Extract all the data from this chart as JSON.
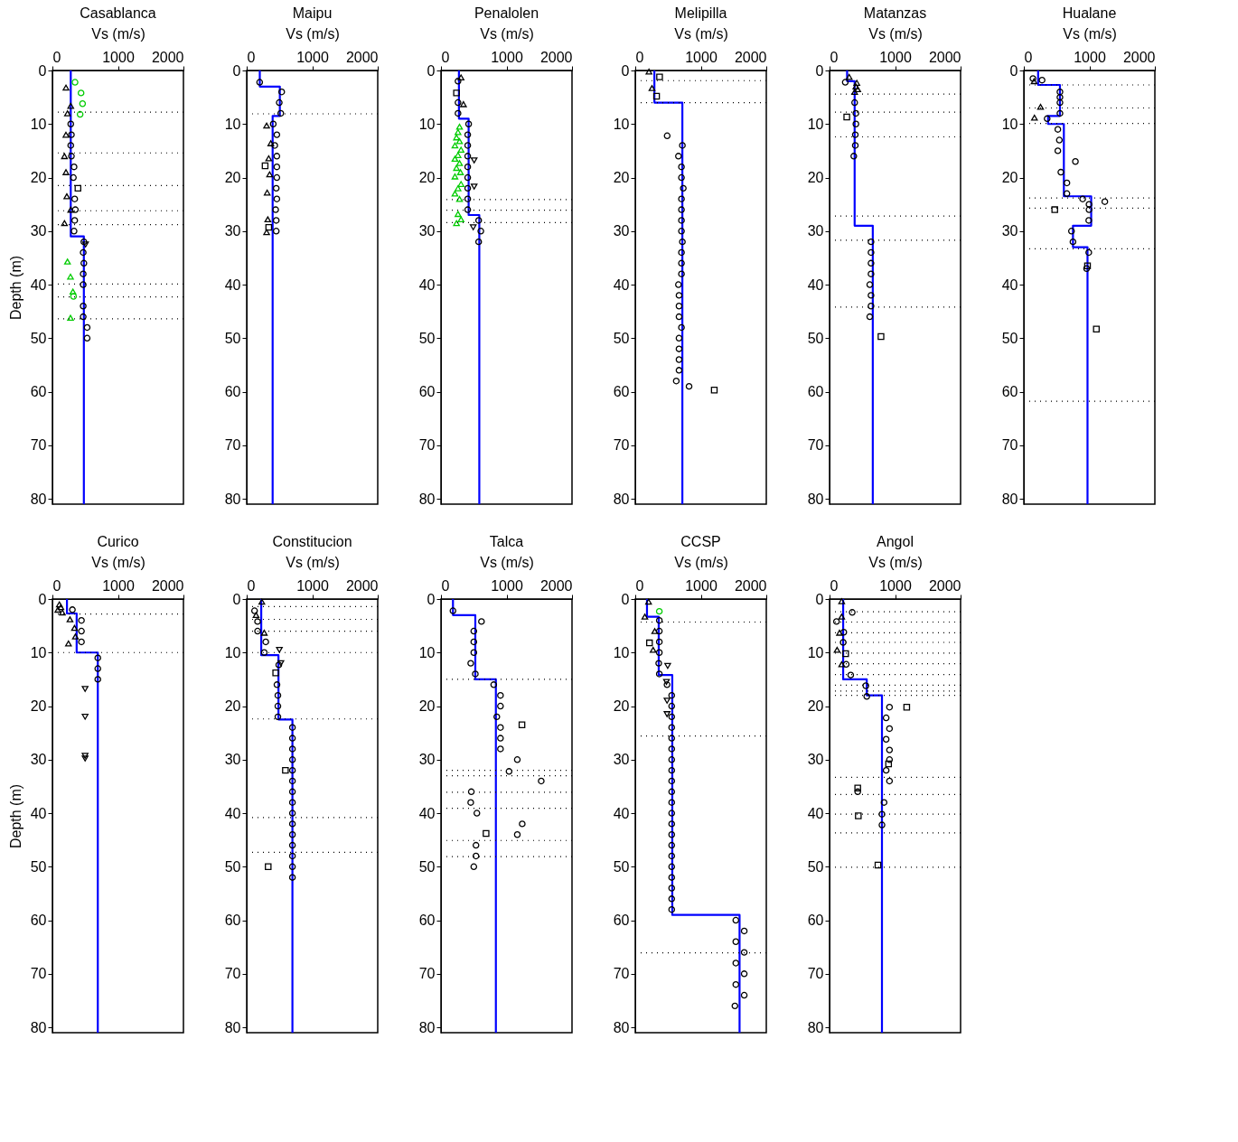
{
  "chart_data": [
    {
      "type": "line",
      "title": "Casablanca",
      "xlabel": "Vs (m/s)",
      "ylabel": "Depth (m)",
      "xlim": [
        0,
        2000
      ],
      "xticks": [
        0,
        1000,
        2000
      ],
      "ylim": [
        81,
        0
      ],
      "yticks": [
        0,
        10,
        20,
        30,
        40,
        50,
        60,
        70,
        80
      ],
      "series": [
        {
          "type": "line",
          "color": "#0000ff",
          "x": [
            280,
            280,
            480,
            480
          ],
          "values": [
            0,
            31,
            31,
            81
          ]
        },
        {
          "type": "scatter",
          "marker": "circle",
          "color": "#000000",
          "x": [
            280,
            290,
            280,
            290,
            330,
            320,
            340,
            350,
            340,
            330,
            480,
            470,
            480,
            470,
            470,
            470,
            470,
            530,
            530
          ],
          "values": [
            10,
            12,
            14,
            16,
            18,
            20,
            24,
            26,
            28,
            30,
            32,
            34,
            36,
            38,
            40,
            44,
            46,
            48,
            50
          ]
        },
        {
          "type": "scatter",
          "marker": "triangle",
          "color": "#000000",
          "x": [
            207,
            280,
            230,
            207,
            184,
            207,
            220,
            280,
            184
          ],
          "values": [
            3.2,
            6.6,
            8,
            12,
            16,
            19,
            23.5,
            26,
            28.5
          ]
        },
        {
          "type": "scatter",
          "marker": "square",
          "color": "#000000",
          "x": [
            390
          ],
          "values": [
            22
          ]
        },
        {
          "type": "scatter",
          "marker": "triangle-down",
          "color": "#000000",
          "x": [
            506
          ],
          "values": [
            32.5
          ]
        },
        {
          "type": "scatter",
          "marker": "circle",
          "color": "#00cc00",
          "x": [
            345,
            437,
            460,
            423,
            322
          ],
          "values": [
            2.2,
            4.2,
            6.2,
            8.2,
            42.2
          ]
        },
        {
          "type": "scatter",
          "marker": "triangle",
          "color": "#00cc00",
          "x": [
            230,
            276,
            313,
            276
          ],
          "values": [
            35.7,
            38.5,
            41.3,
            46.2
          ]
        }
      ],
      "ref_lines": [
        {
          "axis": "y",
          "value": 7.8,
          "line_style": "dotted",
          "color": "#000000"
        },
        {
          "axis": "y",
          "value": 15.4,
          "line_style": "dotted",
          "color": "#000000"
        },
        {
          "axis": "y",
          "value": 21.5,
          "line_style": "dotted",
          "color": "#000000"
        },
        {
          "axis": "y",
          "value": 26.2,
          "line_style": "dotted",
          "color": "#000000"
        },
        {
          "axis": "y",
          "value": 28.8,
          "line_style": "dotted",
          "color": "#000000"
        },
        {
          "axis": "y",
          "value": 39.9,
          "line_style": "dotted",
          "color": "#000000"
        },
        {
          "axis": "y",
          "value": 42.3,
          "line_style": "dotted",
          "color": "#000000"
        },
        {
          "axis": "y",
          "value": 46.4,
          "line_style": "dotted",
          "color": "#000000"
        }
      ]
    },
    {
      "type": "line",
      "title": "Maipu",
      "xlabel": "Vs (m/s)",
      "xlim": [
        0,
        2000
      ],
      "xticks": [
        0,
        1000,
        2000
      ],
      "ylim": [
        81,
        0
      ],
      "yticks": [
        0,
        10,
        20,
        30,
        40,
        50,
        60,
        70,
        80
      ],
      "series": [
        {
          "type": "line",
          "color": "#0000ff",
          "x": [
            200,
            200,
            506,
            506,
            396,
            396
          ],
          "values": [
            0,
            3,
            3,
            8.5,
            8.5,
            81
          ]
        },
        {
          "type": "scatter",
          "marker": "circle",
          "color": "#000000",
          "x": [
            198,
            534,
            497,
            520,
            405,
            460,
            428,
            460,
            460,
            460,
            451,
            460,
            442,
            451,
            451
          ],
          "values": [
            2.2,
            4,
            6,
            8,
            10,
            12,
            14,
            16,
            18,
            20,
            22,
            24,
            26,
            28,
            30
          ]
        },
        {
          "type": "scatter",
          "marker": "triangle",
          "color": "#000000",
          "x": [
            304,
            368,
            336,
            350,
            313,
            322,
            304
          ],
          "values": [
            10.3,
            13.6,
            16.4,
            19.4,
            22.8,
            27.8,
            30.2
          ]
        },
        {
          "type": "scatter",
          "marker": "square",
          "color": "#000000",
          "x": [
            281,
            336
          ],
          "values": [
            17.8,
            29.3
          ]
        }
      ],
      "ref_lines": [
        {
          "axis": "y",
          "value": 8.1,
          "line_style": "dotted",
          "color": "#000000"
        }
      ]
    },
    {
      "type": "line",
      "title": "Penalolen",
      "xlabel": "Vs (m/s)",
      "xlim": [
        0,
        2000
      ],
      "xticks": [
        0,
        1000,
        2000
      ],
      "ylim": [
        81,
        0
      ],
      "yticks": [
        0,
        10,
        20,
        30,
        40,
        50,
        60,
        70,
        80
      ],
      "series": [
        {
          "type": "line",
          "color": "#0000ff",
          "x": [
            274,
            274,
            422,
            422,
            585,
            585
          ],
          "values": [
            0,
            9,
            9,
            27,
            27,
            81
          ]
        },
        {
          "type": "scatter",
          "marker": "circle",
          "color": "#000000",
          "x": [
            260,
            260,
            260,
            422,
            408,
            408,
            408,
            408,
            408,
            408,
            408,
            408,
            575,
            608,
            575
          ],
          "values": [
            2,
            6,
            8,
            10,
            12,
            14,
            16,
            18,
            20,
            22,
            24,
            26,
            28,
            30,
            32
          ]
        },
        {
          "type": "scatter",
          "marker": "square",
          "color": "#000000",
          "x": [
            237
          ],
          "values": [
            4.2
          ]
        },
        {
          "type": "scatter",
          "marker": "triangle",
          "color": "#000000",
          "x": [
            306,
            343
          ],
          "values": [
            1.3,
            6.3
          ]
        },
        {
          "type": "scatter",
          "marker": "triangle-down",
          "color": "#000000",
          "x": [
            506,
            506,
            492
          ],
          "values": [
            16.8,
            21.7,
            29.3
          ]
        },
        {
          "type": "scatter",
          "marker": "triangle",
          "color": "#00cc00",
          "x": [
            283,
            260,
            237,
            283,
            213,
            306,
            260,
            213,
            283,
            237,
            297,
            213,
            306,
            260,
            213,
            283,
            260,
            306,
            237
          ],
          "values": [
            10.5,
            11.5,
            12.5,
            13.2,
            14,
            14.8,
            15.8,
            16.5,
            17.3,
            18.2,
            19,
            19.8,
            21.2,
            22,
            23,
            24,
            26.8,
            27.8,
            28.5
          ]
        }
      ],
      "ref_lines": [
        {
          "axis": "y",
          "value": 24.1,
          "line_style": "dotted",
          "color": "#000000"
        },
        {
          "axis": "y",
          "value": 26.1,
          "line_style": "dotted",
          "color": "#000000"
        },
        {
          "axis": "y",
          "value": 28.4,
          "line_style": "dotted",
          "color": "#000000"
        }
      ]
    },
    {
      "type": "line",
      "title": "Melipilla",
      "xlabel": "Vs (m/s)",
      "xlim": [
        0,
        2000
      ],
      "xticks": [
        0,
        1000,
        2000
      ],
      "ylim": [
        81,
        0
      ],
      "yticks": [
        0,
        10,
        20,
        30,
        40,
        50,
        60,
        70,
        80
      ],
      "series": [
        {
          "type": "line",
          "color": "#0000ff",
          "x": [
            292,
            292,
            719,
            719
          ],
          "values": [
            0,
            6,
            6,
            81
          ]
        },
        {
          "type": "scatter",
          "marker": "triangle",
          "color": "#000000",
          "x": [
            209,
            255
          ],
          "values": [
            0.2,
            3.3
          ]
        },
        {
          "type": "scatter",
          "marker": "square",
          "color": "#000000",
          "x": [
            371,
            325,
            1206
          ],
          "values": [
            1.2,
            4.8,
            59.7
          ]
        },
        {
          "type": "scatter",
          "marker": "circle",
          "color": "#000000",
          "x": [
            487,
            719,
            659,
            705,
            705,
            733,
            705,
            705,
            705,
            705,
            719,
            705,
            705,
            705,
            659,
            668,
            668,
            668,
            705,
            668,
            668,
            668,
            668,
            626,
            821
          ],
          "values": [
            12.2,
            14,
            16,
            18,
            20,
            22,
            24,
            26,
            28,
            30,
            32,
            34,
            36,
            38,
            40,
            42,
            44,
            46,
            48,
            50,
            52,
            54,
            56,
            58,
            59
          ]
        }
      ],
      "ref_lines": [
        {
          "axis": "y",
          "value": 1.9,
          "line_style": "dotted",
          "color": "#000000"
        },
        {
          "axis": "y",
          "value": 6,
          "line_style": "dotted",
          "color": "#000000"
        }
      ]
    },
    {
      "type": "line",
      "title": "Matanzas",
      "xlabel": "Vs (m/s)",
      "xlim": [
        0,
        2000
      ],
      "xticks": [
        0,
        1000,
        2000
      ],
      "ylim": [
        81,
        0
      ],
      "yticks": [
        0,
        10,
        20,
        30,
        40,
        50,
        60,
        70,
        80
      ],
      "series": [
        {
          "type": "line",
          "color": "#0000ff",
          "x": [
            268,
            268,
            383,
            383,
            660,
            660
          ],
          "values": [
            0,
            2,
            2,
            29,
            29,
            81
          ]
        },
        {
          "type": "scatter",
          "marker": "circle",
          "color": "#000000",
          "x": [
            240,
            383,
            402,
            402,
            393,
            393,
            370,
            633,
            633,
            633,
            633,
            614,
            633,
            633,
            614
          ],
          "values": [
            2.2,
            6,
            8,
            10,
            12,
            14,
            16,
            32,
            34,
            36,
            38,
            40,
            42,
            44,
            46
          ]
        },
        {
          "type": "scatter",
          "marker": "triangle",
          "color": "#000000",
          "x": [
            300,
            416,
            402,
            430,
            383
          ],
          "values": [
            1.2,
            2.3,
            3,
            3.5,
            4
          ]
        },
        {
          "type": "scatter",
          "marker": "square",
          "color": "#000000",
          "x": [
            263,
            785
          ],
          "values": [
            8.7,
            49.7
          ]
        }
      ],
      "ref_lines": [
        {
          "axis": "y",
          "value": 4.4,
          "line_style": "dotted",
          "color": "#000000"
        },
        {
          "axis": "y",
          "value": 7.8,
          "line_style": "dotted",
          "color": "#000000"
        },
        {
          "axis": "y",
          "value": 12.4,
          "line_style": "dotted",
          "color": "#000000"
        },
        {
          "axis": "y",
          "value": 27.2,
          "line_style": "dotted",
          "color": "#000000"
        },
        {
          "axis": "y",
          "value": 31.7,
          "line_style": "dotted",
          "color": "#000000"
        },
        {
          "axis": "y",
          "value": 44.2,
          "line_style": "dotted",
          "color": "#000000"
        }
      ]
    },
    {
      "type": "line",
      "title": "Hualane",
      "xlabel": "Vs (m/s)",
      "xlim": [
        0,
        2000
      ],
      "xticks": [
        0,
        1000,
        2000
      ],
      "ylim": [
        81,
        0
      ],
      "yticks": [
        0,
        10,
        20,
        30,
        40,
        50,
        60,
        70,
        80
      ],
      "series": [
        {
          "type": "line",
          "color": "#0000ff",
          "x": [
            218,
            218,
            551,
            551,
            370,
            370,
            611,
            611,
            1028,
            1028,
            750,
            750,
            972,
            972
          ],
          "values": [
            0,
            2.7,
            2.7,
            8.5,
            8.5,
            10,
            10,
            23.5,
            23.5,
            29,
            29,
            33,
            33,
            81
          ]
        },
        {
          "type": "scatter",
          "marker": "circle",
          "color": "#000000",
          "x": [
            139,
            278,
            551,
            551,
            551,
            551,
            356,
            519,
            542,
            519,
            787,
            565,
            657,
            657,
            898,
            1236,
            995,
            995,
            991,
            727,
            750,
            991,
            958
          ],
          "values": [
            1.5,
            1.8,
            4,
            5,
            6,
            8,
            9,
            11,
            13,
            15,
            17,
            19,
            21,
            23,
            24,
            24.5,
            25,
            26,
            28,
            30,
            32,
            34,
            37
          ]
        },
        {
          "type": "scatter",
          "marker": "triangle",
          "color": "#000000",
          "x": [
            157,
            255,
            162
          ],
          "values": [
            2,
            6.8,
            8.8
          ]
        },
        {
          "type": "scatter",
          "marker": "square",
          "color": "#000000",
          "x": [
            472,
            972,
            1107
          ],
          "values": [
            26,
            36.5,
            48.3
          ]
        }
      ],
      "ref_lines": [
        {
          "axis": "y",
          "value": 2.7,
          "line_style": "dotted",
          "color": "#000000"
        },
        {
          "axis": "y",
          "value": 7,
          "line_style": "dotted",
          "color": "#000000"
        },
        {
          "axis": "y",
          "value": 9.9,
          "line_style": "dotted",
          "color": "#000000"
        },
        {
          "axis": "y",
          "value": 23.8,
          "line_style": "dotted",
          "color": "#000000"
        },
        {
          "axis": "y",
          "value": 25.7,
          "line_style": "dotted",
          "color": "#000000"
        },
        {
          "axis": "y",
          "value": 33.3,
          "line_style": "dotted",
          "color": "#000000"
        },
        {
          "axis": "y",
          "value": 61.8,
          "line_style": "dotted",
          "color": "#000000"
        }
      ]
    },
    {
      "type": "line",
      "title": "Curico",
      "xlabel": "Vs (m/s)",
      "ylabel": "Depth (m)",
      "xlim": [
        0,
        2000
      ],
      "xticks": [
        0,
        1000,
        2000
      ],
      "ylim": [
        81,
        0
      ],
      "yticks": [
        0,
        10,
        20,
        30,
        40,
        50,
        60,
        70,
        80
      ],
      "series": [
        {
          "type": "line",
          "color": "#0000ff",
          "x": [
            222,
            222,
            370,
            370,
            693,
            693
          ],
          "values": [
            0,
            2.7,
            2.7,
            10,
            10,
            81
          ]
        },
        {
          "type": "scatter",
          "marker": "triangle",
          "color": "#000000",
          "x": [
            106,
            129,
            83,
            152,
            268,
            337,
            351,
            245
          ],
          "values": [
            1,
            1.5,
            2,
            2.5,
            3.8,
            5.4,
            7,
            8.3
          ]
        },
        {
          "type": "scatter",
          "marker": "circle",
          "color": "#000000",
          "x": [
            305,
            443,
            443,
            443,
            693,
            693,
            693
          ],
          "values": [
            2,
            4,
            6,
            8,
            11,
            13,
            15
          ]
        },
        {
          "type": "scatter",
          "marker": "triangle-down",
          "color": "#000000",
          "x": [
            499,
            499,
            499,
            499
          ],
          "values": [
            16.8,
            22,
            29.3,
            29.8
          ]
        }
      ],
      "ref_lines": [
        {
          "axis": "y",
          "value": 2.8,
          "line_style": "dotted",
          "color": "#000000"
        },
        {
          "axis": "y",
          "value": 10,
          "line_style": "dotted",
          "color": "#000000"
        }
      ]
    },
    {
      "type": "line",
      "title": "Constitucion",
      "xlabel": "Vs (m/s)",
      "xlim": [
        0,
        2000
      ],
      "xticks": [
        0,
        1000,
        2000
      ],
      "ylim": [
        81,
        0
      ],
      "yticks": [
        0,
        10,
        20,
        30,
        40,
        50,
        60,
        70,
        80
      ],
      "series": [
        {
          "type": "line",
          "color": "#0000ff",
          "x": [
            222,
            222,
            485,
            485,
            698,
            698
          ],
          "values": [
            0,
            10.5,
            10.5,
            22.5,
            22.5,
            81
          ]
        },
        {
          "type": "scatter",
          "marker": "square",
          "color": "#000000",
          "x": [
            443,
            591,
            328
          ],
          "values": [
            13.8,
            32,
            50
          ]
        },
        {
          "type": "scatter",
          "marker": "circle",
          "color": "#000000",
          "x": [
            120,
            166,
            166,
            291,
            268,
            490,
            null,
            462,
            476,
            476,
            476,
            698,
            698,
            698,
            698,
            698,
            698,
            698,
            698,
            698,
            698,
            698,
            698,
            698,
            698,
            698
          ],
          "values": [
            2.2,
            4.2,
            6,
            8,
            10,
            12.3,
            null,
            16,
            18,
            20,
            22,
            24,
            26,
            28,
            30,
            32,
            34,
            36,
            38,
            40,
            42,
            44,
            46,
            48,
            50,
            52
          ]
        },
        {
          "type": "scatter",
          "marker": "triangle",
          "color": "#000000",
          "x": [
            231,
            143,
            268
          ],
          "values": [
            0.5,
            3,
            6.3
          ]
        },
        {
          "type": "scatter",
          "marker": "triangle-down",
          "color": "#000000",
          "x": [
            499,
            522
          ],
          "values": [
            9.5,
            12
          ]
        }
      ],
      "ref_lines": [
        {
          "axis": "y",
          "value": 1.4,
          "line_style": "dotted",
          "color": "#000000"
        },
        {
          "axis": "y",
          "value": 3.8,
          "line_style": "dotted",
          "color": "#000000"
        },
        {
          "axis": "y",
          "value": 6,
          "line_style": "dotted",
          "color": "#000000"
        },
        {
          "axis": "y",
          "value": 10,
          "line_style": "dotted",
          "color": "#000000"
        },
        {
          "axis": "y",
          "value": 22.4,
          "line_style": "dotted",
          "color": "#000000"
        },
        {
          "axis": "y",
          "value": 40.8,
          "line_style": "dotted",
          "color": "#000000"
        },
        {
          "axis": "y",
          "value": 47.3,
          "line_style": "dotted",
          "color": "#000000"
        }
      ]
    },
    {
      "type": "line",
      "title": "Talca",
      "xlabel": "Vs (m/s)",
      "xlim": [
        0,
        2000
      ],
      "xticks": [
        0,
        1000,
        2000
      ],
      "ylim": [
        81,
        0
      ],
      "yticks": [
        0,
        10,
        20,
        30,
        40,
        50,
        60,
        70,
        80
      ],
      "series": [
        {
          "type": "line",
          "color": "#0000ff",
          "x": [
            183,
            183,
            524,
            524,
            838,
            838
          ],
          "values": [
            0,
            3,
            3,
            15,
            15,
            81
          ]
        },
        {
          "type": "scatter",
          "marker": "circle",
          "color": "#000000",
          "x": [
            183,
            618,
            501,
            501,
            501,
            454,
            524,
            805,
            908,
            908,
            852,
            908,
            908,
            908,
            1165,
            1039,
            1530,
            463,
            454,
            548,
            1240,
            1165,
            534,
            534,
            501
          ],
          "values": [
            2.2,
            4.2,
            6,
            8,
            10,
            12,
            14,
            16,
            18,
            20,
            22,
            24,
            26,
            28,
            30,
            32.2,
            34,
            36,
            38,
            40,
            42,
            44,
            46,
            48,
            50
          ]
        },
        {
          "type": "scatter",
          "marker": "square",
          "color": "#000000",
          "x": [
            1236,
            688
          ],
          "values": [
            23.5,
            43.8
          ]
        }
      ],
      "ref_lines": [
        {
          "axis": "y",
          "value": 15,
          "line_style": "dotted",
          "color": "#000000"
        },
        {
          "axis": "y",
          "value": 32,
          "line_style": "dotted",
          "color": "#000000"
        },
        {
          "axis": "y",
          "value": 33,
          "line_style": "dotted",
          "color": "#000000"
        },
        {
          "axis": "y",
          "value": 36.1,
          "line_style": "dotted",
          "color": "#000000"
        },
        {
          "axis": "y",
          "value": 39.1,
          "line_style": "dotted",
          "color": "#000000"
        },
        {
          "axis": "y",
          "value": 45.1,
          "line_style": "dotted",
          "color": "#000000"
        },
        {
          "axis": "y",
          "value": 48.1,
          "line_style": "dotted",
          "color": "#000000"
        }
      ]
    },
    {
      "type": "line",
      "title": "CCSP",
      "xlabel": "Vs (m/s)",
      "xlim": [
        0,
        2000
      ],
      "xticks": [
        0,
        1000,
        2000
      ],
      "ylim": [
        81,
        0
      ],
      "yticks": [
        0,
        10,
        20,
        30,
        40,
        50,
        60,
        70,
        80
      ],
      "series": [
        {
          "type": "line",
          "color": "#0000ff",
          "x": [
            179,
            179,
            358,
            358,
            565,
            565,
            1592,
            1592
          ],
          "values": [
            0,
            3.3,
            3.3,
            14.2,
            14.2,
            59,
            59,
            81
          ]
        },
        {
          "type": "scatter",
          "marker": "triangle",
          "color": "#000000",
          "x": [
            203,
            146,
            297,
            273
          ],
          "values": [
            0.5,
            3.3,
            6,
            9.5
          ]
        },
        {
          "type": "scatter",
          "marker": "square",
          "color": "#000000",
          "x": [
            217
          ],
          "values": [
            8.2
          ]
        },
        {
          "type": "scatter",
          "marker": "circle",
          "color": "#00cc00",
          "x": [
            367
          ],
          "values": [
            2.3
          ]
        },
        {
          "type": "scatter",
          "marker": "circle",
          "color": "#000000",
          "x": [
            367,
            367,
            367,
            367,
            358,
            367,
            485,
            556,
            556,
            556,
            556,
            556,
            556,
            556,
            556,
            556,
            556,
            556,
            556,
            556,
            556,
            556,
            556,
            556,
            556,
            556,
            556,
            556,
            1535,
            1663,
            1535,
            1663,
            1535,
            1663,
            1535,
            1663,
            1521
          ],
          "values": [
            4,
            6,
            8,
            10,
            12,
            14,
            16,
            18,
            20,
            22,
            24,
            26,
            28,
            30,
            32,
            34,
            36,
            38,
            40,
            42,
            44,
            46,
            48,
            50,
            52,
            54,
            56,
            58,
            60,
            62,
            64,
            66,
            68,
            70,
            72,
            74,
            76
          ]
        },
        {
          "type": "scatter",
          "marker": "triangle-down",
          "color": "#000000",
          "x": [
            495,
            476,
            485,
            485
          ],
          "values": [
            12.5,
            15.5,
            19,
            21.5
          ]
        }
      ],
      "ref_lines": [
        {
          "axis": "y",
          "value": 4.3,
          "line_style": "dotted",
          "color": "#000000"
        },
        {
          "axis": "y",
          "value": 25.6,
          "line_style": "dotted",
          "color": "#000000"
        },
        {
          "axis": "y",
          "value": 66.1,
          "line_style": "dotted",
          "color": "#000000"
        }
      ]
    },
    {
      "type": "line",
      "title": "Angol",
      "xlabel": "Vs (m/s)",
      "xlim": [
        0,
        2000
      ],
      "xticks": [
        0,
        1000,
        2000
      ],
      "ylim": [
        81,
        0
      ],
      "yticks": [
        0,
        10,
        20,
        30,
        40,
        50,
        60,
        70,
        80
      ],
      "series": [
        {
          "type": "line",
          "color": "#0000ff",
          "x": [
            208,
            208,
            568,
            568,
            800,
            800
          ],
          "values": [
            0,
            15,
            15,
            18,
            18,
            81
          ]
        },
        {
          "type": "scatter",
          "marker": "triangle",
          "color": "#000000",
          "x": [
            185,
            185,
            152,
            115,
            185
          ],
          "values": [
            0.4,
            3.3,
            6.3,
            9.5,
            12.2
          ]
        },
        {
          "type": "scatter",
          "marker": "circle",
          "color": "#000000",
          "x": [
            346,
            106,
            217,
            208,
            254,
            323,
            554,
            568,
            915,
            864,
            915,
            864,
            915,
            915,
            864,
            915,
            430,
            832,
            800,
            800
          ],
          "values": [
            2.5,
            4.2,
            6.2,
            8.1,
            12.2,
            14.2,
            16.2,
            18.2,
            20.2,
            22.2,
            24.2,
            26.2,
            28.2,
            30,
            32,
            34,
            36,
            38,
            40.2,
            42.2
          ]
        },
        {
          "type": "scatter",
          "marker": "square",
          "color": "#000000",
          "x": [
            245,
            1178,
            901,
            430,
            439,
            739
          ],
          "values": [
            10.2,
            20.2,
            30.8,
            35.3,
            40.5,
            49.7
          ]
        }
      ],
      "ref_lines": [
        {
          "axis": "y",
          "value": 2.4,
          "line_style": "dotted",
          "color": "#000000"
        },
        {
          "axis": "y",
          "value": 4.3,
          "line_style": "dotted",
          "color": "#000000"
        },
        {
          "axis": "y",
          "value": 6.3,
          "line_style": "dotted",
          "color": "#000000"
        },
        {
          "axis": "y",
          "value": 8.1,
          "line_style": "dotted",
          "color": "#000000"
        },
        {
          "axis": "y",
          "value": 10.1,
          "line_style": "dotted",
          "color": "#000000"
        },
        {
          "axis": "y",
          "value": 12.1,
          "line_style": "dotted",
          "color": "#000000"
        },
        {
          "axis": "y",
          "value": 14.1,
          "line_style": "dotted",
          "color": "#000000"
        },
        {
          "axis": "y",
          "value": 16.1,
          "line_style": "dotted",
          "color": "#000000"
        },
        {
          "axis": "y",
          "value": 17.2,
          "line_style": "dotted",
          "color": "#000000"
        },
        {
          "axis": "y",
          "value": 18,
          "line_style": "dotted",
          "color": "#000000"
        },
        {
          "axis": "y",
          "value": 33.3,
          "line_style": "dotted",
          "color": "#000000"
        },
        {
          "axis": "y",
          "value": 36.5,
          "line_style": "dotted",
          "color": "#000000"
        },
        {
          "axis": "y",
          "value": 40.2,
          "line_style": "dotted",
          "color": "#000000"
        },
        {
          "axis": "y",
          "value": 43.7,
          "line_style": "dotted",
          "color": "#000000"
        },
        {
          "axis": "y",
          "value": 50.1,
          "line_style": "dotted",
          "color": "#000000"
        }
      ]
    }
  ]
}
